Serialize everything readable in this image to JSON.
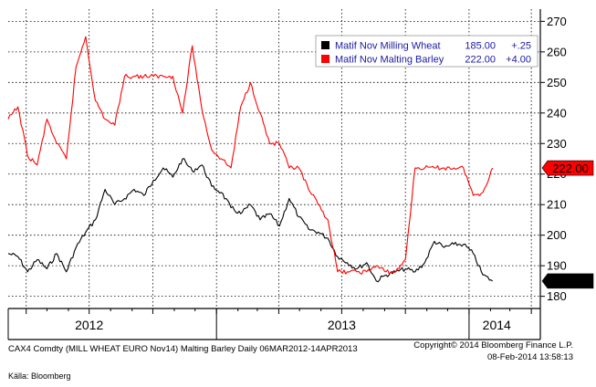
{
  "chart_data": {
    "type": "line",
    "x_range": [
      "2012-03-06",
      "2014-04-14"
    ],
    "y_ticks": [
      180,
      190,
      200,
      210,
      220,
      230,
      240,
      250,
      260,
      270
    ],
    "ylim": [
      176,
      274
    ],
    "grid": true,
    "legend_position": "top-right",
    "year_labels": [
      {
        "label": "2012",
        "date": "2012-07-01"
      },
      {
        "label": "2013",
        "date": "2013-07-01"
      },
      {
        "label": "2014",
        "date": "2014-02-10"
      }
    ],
    "year_separators": [
      "2013-01-01",
      "2014-01-01"
    ],
    "series": [
      {
        "name": "Matif Nov Milling Wheat",
        "color": "#000000",
        "last_label": "185.00",
        "legend_value": "185.00",
        "legend_change": "+.25",
        "x": [
          "2012-03-06",
          "2012-03-20",
          "2012-04-03",
          "2012-04-17",
          "2012-05-01",
          "2012-05-15",
          "2012-05-29",
          "2012-06-12",
          "2012-06-26",
          "2012-07-10",
          "2012-07-24",
          "2012-08-07",
          "2012-08-21",
          "2012-09-04",
          "2012-09-18",
          "2012-10-02",
          "2012-10-16",
          "2012-10-30",
          "2012-11-13",
          "2012-11-27",
          "2012-12-11",
          "2012-12-25",
          "2013-01-08",
          "2013-01-22",
          "2013-02-05",
          "2013-02-19",
          "2013-03-05",
          "2013-03-19",
          "2013-04-02",
          "2013-04-16",
          "2013-04-30",
          "2013-05-14",
          "2013-05-28",
          "2013-06-11",
          "2013-06-25",
          "2013-07-09",
          "2013-07-23",
          "2013-08-06",
          "2013-08-20",
          "2013-09-03",
          "2013-09-17",
          "2013-10-01",
          "2013-10-15",
          "2013-10-29",
          "2013-11-12",
          "2013-11-26",
          "2013-12-10",
          "2013-12-24",
          "2014-01-07",
          "2014-01-21",
          "2014-02-04"
        ],
        "values": [
          194,
          193,
          188,
          192,
          189,
          194,
          188,
          196,
          201,
          205,
          215,
          210,
          212,
          215,
          213,
          218,
          222,
          219,
          225,
          221,
          223,
          216,
          214,
          209,
          207,
          210,
          205,
          207,
          203,
          212,
          206,
          202,
          201,
          199,
          193,
          191,
          189,
          191,
          185,
          187,
          188,
          189,
          188,
          191,
          198,
          196,
          197,
          197,
          194,
          187,
          185
        ]
      },
      {
        "name": "Matif Nov Malting Barley",
        "color": "#ff0000",
        "last_label": "222.00",
        "legend_value": "222.00",
        "legend_change": "+4.00",
        "x": [
          "2012-03-06",
          "2012-03-20",
          "2012-04-03",
          "2012-04-17",
          "2012-05-01",
          "2012-05-15",
          "2012-05-29",
          "2012-06-12",
          "2012-06-26",
          "2012-07-10",
          "2012-07-24",
          "2012-08-07",
          "2012-08-21",
          "2012-09-04",
          "2012-09-18",
          "2012-10-02",
          "2012-10-16",
          "2012-10-30",
          "2012-11-13",
          "2012-11-27",
          "2012-12-11",
          "2012-12-25",
          "2013-01-08",
          "2013-01-22",
          "2013-02-05",
          "2013-02-19",
          "2013-03-05",
          "2013-03-19",
          "2013-04-02",
          "2013-04-16",
          "2013-04-30",
          "2013-05-14",
          "2013-05-28",
          "2013-06-11",
          "2013-06-25",
          "2013-07-09",
          "2013-07-23",
          "2013-08-06",
          "2013-08-20",
          "2013-09-03",
          "2013-09-17",
          "2013-10-01",
          "2013-10-15",
          "2013-10-29",
          "2013-11-12",
          "2013-11-26",
          "2013-12-10",
          "2013-12-24",
          "2014-01-07",
          "2014-01-21",
          "2014-02-04"
        ],
        "values": [
          238,
          242,
          226,
          223,
          238,
          230,
          225,
          255,
          265,
          244,
          238,
          236,
          252,
          252,
          252,
          252,
          252,
          252,
          240,
          262,
          241,
          228,
          225,
          222,
          242,
          250,
          240,
          230,
          230,
          222,
          222,
          215,
          210,
          205,
          188,
          188,
          188,
          188,
          190,
          188,
          188,
          192,
          222,
          222,
          222,
          222,
          222,
          222,
          213,
          214,
          222
        ]
      }
    ]
  },
  "footer": {
    "left": "CAX4 Comdty (MILL WHEAT EURO   Nov14) Malting Barley  Daily 06MAR2012-14APR2013",
    "right_1": "Copyright© 2014 Bloomberg Finance L.P.",
    "right_2": "08-Feb-2014 13:58:13",
    "source": "Källa: Bloomberg"
  }
}
